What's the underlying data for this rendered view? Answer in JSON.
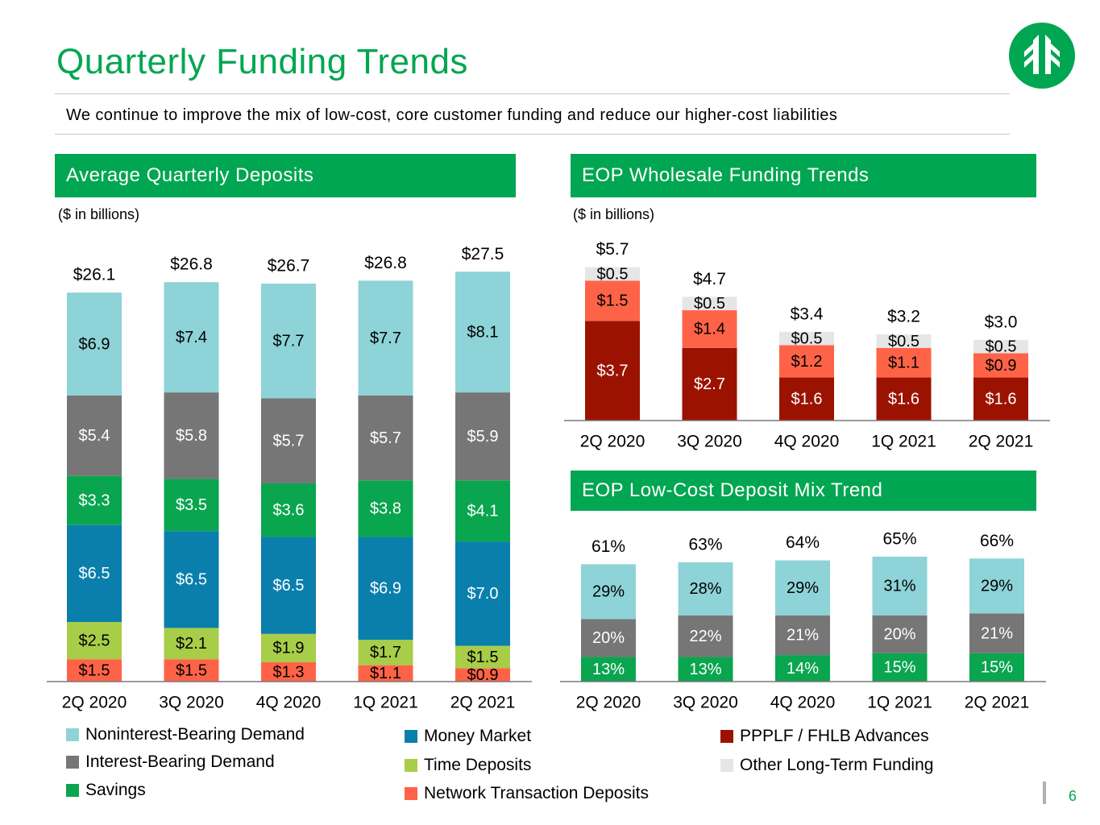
{
  "title": "Quarterly Funding Trends",
  "subtitle": "We continue to improve the mix of low-cost, core customer funding and reduce our higher-cost liabilities",
  "page_number": "6",
  "colors": {
    "green": "#00a651",
    "noninterest": "#8dd3d8",
    "interest": "#767676",
    "savings": "#0aa54f",
    "money_market": "#0a7fac",
    "time": "#a8cd48",
    "network": "#ff6347",
    "ppplf": "#9b1300",
    "other_lt": "#e6e6e6"
  },
  "panels": {
    "deposits": {
      "title": "Average Quarterly Deposits",
      "unit": "($ in billions)"
    },
    "wholesale": {
      "title": "EOP Wholesale Funding Trends",
      "unit": "($ in billions)"
    },
    "mix": {
      "title": "EOP Low-Cost Deposit Mix Trend"
    }
  },
  "chart_data": [
    {
      "id": "deposits",
      "type": "bar",
      "stacked": true,
      "categories": [
        "2Q 2020",
        "3Q 2020",
        "4Q 2020",
        "1Q 2021",
        "2Q 2021"
      ],
      "totals": [
        "$26.1",
        "$26.8",
        "$26.7",
        "$26.8",
        "$27.5"
      ],
      "series": [
        {
          "name": "Network Transaction Deposits",
          "color": "#ff6347",
          "values": [
            1.5,
            1.5,
            1.3,
            1.1,
            0.9
          ],
          "labels": [
            "$1.5",
            "$1.5",
            "$1.3",
            "$1.1",
            "$0.9"
          ],
          "label_color": "#000000"
        },
        {
          "name": "Time Deposits",
          "color": "#a8cd48",
          "values": [
            2.5,
            2.1,
            1.9,
            1.7,
            1.5
          ],
          "labels": [
            "$2.5",
            "$2.1",
            "$1.9",
            "$1.7",
            "$1.5"
          ],
          "label_color": "#000000"
        },
        {
          "name": "Money Market",
          "color": "#0a7fac",
          "values": [
            6.5,
            6.5,
            6.5,
            6.9,
            7.0
          ],
          "labels": [
            "$6.5",
            "$6.5",
            "$6.5",
            "$6.9",
            "$7.0"
          ],
          "label_color": "#ffffff"
        },
        {
          "name": "Savings",
          "color": "#0aa54f",
          "values": [
            3.3,
            3.5,
            3.6,
            3.8,
            4.1
          ],
          "labels": [
            "$3.3",
            "$3.5",
            "$3.6",
            "$3.8",
            "$4.1"
          ],
          "label_color": "#ffffff"
        },
        {
          "name": "Interest-Bearing Demand",
          "color": "#767676",
          "values": [
            5.4,
            5.8,
            5.7,
            5.7,
            5.9
          ],
          "labels": [
            "$5.4",
            "$5.8",
            "$5.7",
            "$5.7",
            "$5.9"
          ],
          "label_color": "#ffffff"
        },
        {
          "name": "Noninterest-Bearing Demand",
          "color": "#8dd3d8",
          "values": [
            6.9,
            7.4,
            7.7,
            7.7,
            8.1
          ],
          "labels": [
            "$6.9",
            "$7.4",
            "$7.7",
            "$7.7",
            "$8.1"
          ],
          "label_color": "#000000"
        }
      ]
    },
    {
      "id": "wholesale",
      "type": "bar",
      "stacked": true,
      "categories": [
        "2Q 2020",
        "3Q 2020",
        "4Q 2020",
        "1Q 2021",
        "2Q 2021"
      ],
      "totals": [
        "$5.7",
        "$4.7",
        "$3.4",
        "$3.2",
        "$3.0"
      ],
      "series": [
        {
          "name": "PPPLF / FHLB Advances",
          "color": "#9b1300",
          "values": [
            3.7,
            2.7,
            1.6,
            1.6,
            1.6
          ],
          "labels": [
            "$3.7",
            "$2.7",
            "$1.6",
            "$1.6",
            "$1.6"
          ],
          "label_color": "#ffffff"
        },
        {
          "name": "Network Transaction Deposits",
          "color": "#ff6347",
          "values": [
            1.5,
            1.4,
            1.2,
            1.1,
            0.9
          ],
          "labels": [
            "$1.5",
            "$1.4",
            "$1.2",
            "$1.1",
            "$0.9"
          ],
          "label_color": "#000000"
        },
        {
          "name": "Other Long-Term Funding",
          "color": "#e6e6e6",
          "values": [
            0.5,
            0.5,
            0.5,
            0.5,
            0.5
          ],
          "labels": [
            "$0.5",
            "$0.5",
            "$0.5",
            "$0.5",
            "$0.5"
          ],
          "label_color": "#000000"
        }
      ]
    },
    {
      "id": "mix",
      "type": "bar",
      "stacked": true,
      "categories": [
        "2Q 2020",
        "3Q 2020",
        "4Q 2020",
        "1Q 2021",
        "2Q 2021"
      ],
      "totals": [
        "61%",
        "63%",
        "64%",
        "65%",
        "66%"
      ],
      "series": [
        {
          "name": "Savings",
          "color": "#0aa54f",
          "values": [
            13,
            13,
            14,
            15,
            15
          ],
          "labels": [
            "13%",
            "13%",
            "14%",
            "15%",
            "15%"
          ],
          "label_color": "#ffffff"
        },
        {
          "name": "Interest-Bearing Demand",
          "color": "#767676",
          "values": [
            20,
            22,
            21,
            20,
            21
          ],
          "labels": [
            "20%",
            "22%",
            "21%",
            "20%",
            "21%"
          ],
          "label_color": "#ffffff"
        },
        {
          "name": "Noninterest-Bearing Demand",
          "color": "#8dd3d8",
          "values": [
            29,
            28,
            29,
            31,
            29
          ],
          "labels": [
            "29%",
            "28%",
            "29%",
            "31%",
            "29%"
          ],
          "label_color": "#000000"
        }
      ]
    }
  ],
  "legend_left": [
    {
      "label": "Noninterest-Bearing Demand",
      "color": "#8dd3d8"
    },
    {
      "label": "Interest-Bearing Demand",
      "color": "#767676"
    },
    {
      "label": "Savings",
      "color": "#0aa54f"
    },
    {
      "label": "Money Market",
      "color": "#0a7fac"
    },
    {
      "label": "Time Deposits",
      "color": "#a8cd48"
    },
    {
      "label": "Network Transaction Deposits",
      "color": "#ff6347"
    }
  ],
  "legend_right": [
    {
      "label": "PPPLF / FHLB Advances",
      "color": "#9b1300"
    },
    {
      "label": "Other Long-Term Funding",
      "color": "#e6e6e6"
    }
  ]
}
